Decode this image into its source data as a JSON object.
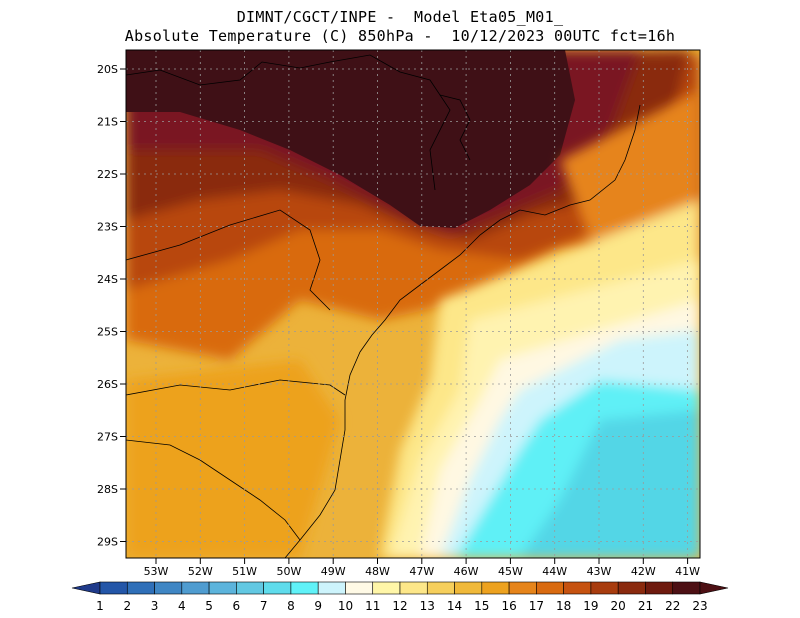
{
  "title": {
    "line1": "DIMNT/CGCT/INPE -  Model Eta05_M01_",
    "line2": "Absolute Temperature (C) 850hPa -  10/12/2023 00UTC fct=16h"
  },
  "lat_labels": [
    "20S",
    "21S",
    "22S",
    "23S",
    "24S",
    "25S",
    "26S",
    "27S",
    "28S",
    "29S"
  ],
  "lon_labels": [
    "53W",
    "52W",
    "51W",
    "50W",
    "49W",
    "48W",
    "47W",
    "46W",
    "45W",
    "44W",
    "43W",
    "42W",
    "41W"
  ],
  "colorbar": {
    "labels": [
      "1",
      "2",
      "3",
      "4",
      "5",
      "6",
      "7",
      "8",
      "9",
      "10",
      "11",
      "12",
      "13",
      "14",
      "15",
      "16",
      "17",
      "18",
      "19",
      "20",
      "21",
      "22",
      "23"
    ],
    "colors": [
      "#1f3a8a",
      "#2356a8",
      "#2f6fb8",
      "#3f86c4",
      "#4f9cd0",
      "#5cb4dc",
      "#62c8e2",
      "#5fdcec",
      "#60f2f8",
      "#cdf4fc",
      "#fffae6",
      "#fff6a8",
      "#fde789",
      "#f6cf5c",
      "#f0b93a",
      "#eda21f",
      "#e6841a",
      "#d96a10",
      "#c65210",
      "#a83c0e",
      "#8a2a0e",
      "#6e1a0e",
      "#4d1014"
    ]
  },
  "regions": [
    {
      "name": "very-hot-north",
      "temp_c": 23,
      "color": "#4a1218"
    },
    {
      "name": "hot-band",
      "temp_c": 21,
      "color": "#8a2a0e"
    },
    {
      "name": "warm-south",
      "temp_c": 17,
      "color": "#e6841a"
    },
    {
      "name": "mild-coast",
      "temp_c": 13,
      "color": "#fde789"
    },
    {
      "name": "cool-ocean",
      "temp_c": 9,
      "color": "#60f2f8"
    }
  ]
}
